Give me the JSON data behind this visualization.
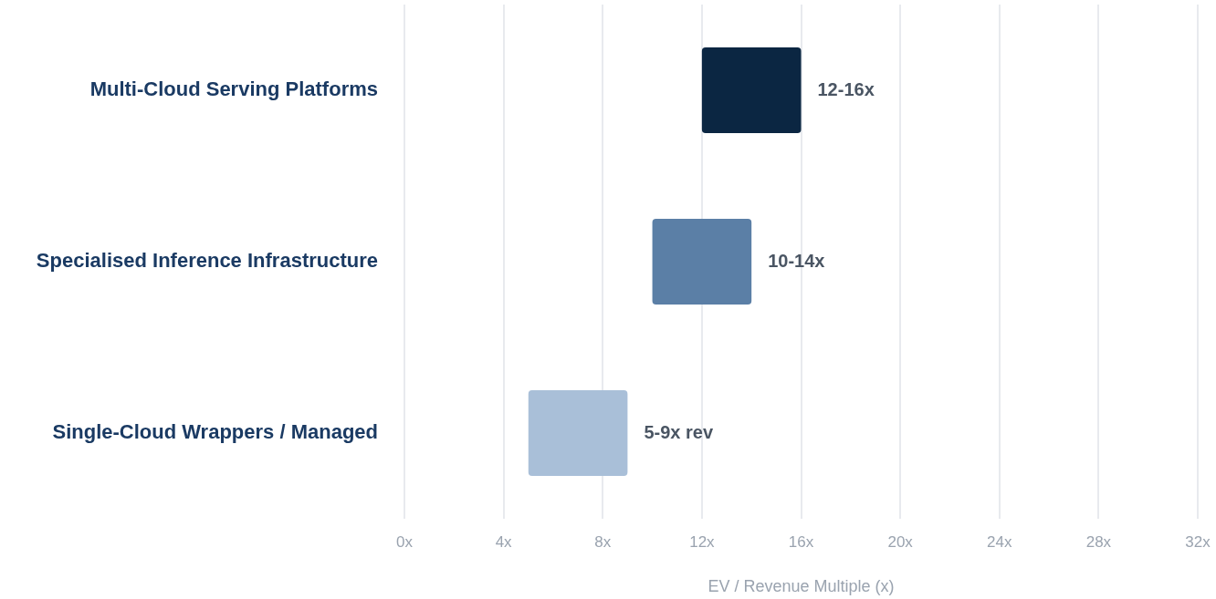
{
  "chart_data": {
    "type": "bar",
    "orientation": "horizontal",
    "categories": [
      "Multi-Cloud Serving Platforms",
      "Specialised Inference Infrastructure",
      "Single-Cloud Wrappers / Managed"
    ],
    "base": [
      12,
      10,
      5
    ],
    "values": [
      4,
      4,
      4
    ],
    "colors": [
      "#0b2642",
      "#5b7fa6",
      "#a9bfd8"
    ],
    "value_labels": [
      "12-16x",
      "10-14x",
      "5-9x rev"
    ],
    "xlabel": "EV / Revenue Multiple (x)",
    "xlim": [
      0,
      32
    ],
    "xticks": [
      {
        "value": 0,
        "label": "0x"
      },
      {
        "value": 4,
        "label": "4x"
      },
      {
        "value": 8,
        "label": "8x"
      },
      {
        "value": 12,
        "label": "12x"
      },
      {
        "value": 16,
        "label": "16x"
      },
      {
        "value": 20,
        "label": "20x"
      },
      {
        "value": 24,
        "label": "24x"
      },
      {
        "value": 28,
        "label": "28x"
      },
      {
        "value": 32,
        "label": "32x"
      }
    ],
    "grid": "x"
  }
}
